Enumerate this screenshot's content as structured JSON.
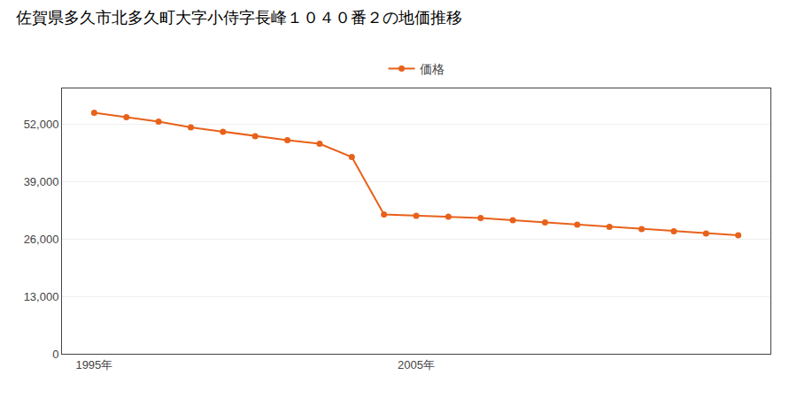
{
  "chart_data": {
    "type": "line",
    "title": "佐賀県多久市北多久町大字小侍字長峰１０４０番２の地価推移",
    "x": [
      1995,
      1996,
      1997,
      1998,
      1999,
      2000,
      2001,
      2002,
      2003,
      2004,
      2005,
      2006,
      2007,
      2008,
      2009,
      2010,
      2011,
      2012,
      2013,
      2014,
      2015
    ],
    "series": [
      {
        "name": "価格",
        "color": "#E8611A",
        "marker": "circle",
        "values": [
          54500,
          53500,
          52500,
          51200,
          50200,
          49200,
          48300,
          47500,
          44500,
          31500,
          31200,
          31000,
          30700,
          30200,
          29700,
          29200,
          28700,
          28200,
          27700,
          27200,
          26800
        ]
      }
    ],
    "xlim": [
      1994,
      2016
    ],
    "xticks": [
      {
        "value": 1995,
        "label": "1995年"
      },
      {
        "value": 2005,
        "label": "2005年"
      }
    ],
    "ylim": [
      0,
      60000
    ],
    "yticks": [
      0,
      {
        "value": 13000,
        "label": "13,000"
      },
      {
        "value": 26000,
        "label": "26,000"
      },
      {
        "value": 39000,
        "label": "39,000"
      },
      {
        "value": 52000,
        "label": "52,000"
      }
    ],
    "grid": "y",
    "legend": "top"
  }
}
